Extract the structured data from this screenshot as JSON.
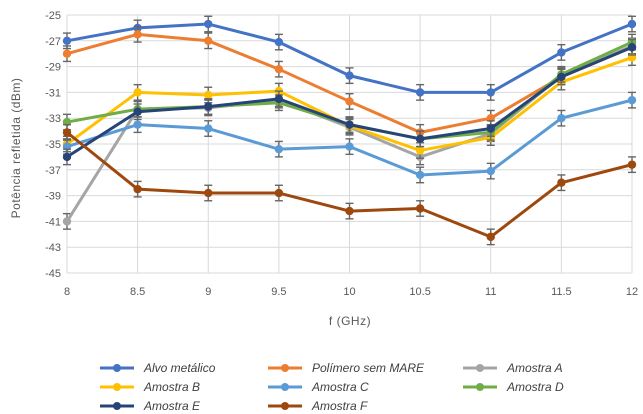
{
  "chart_data": {
    "type": "line",
    "title": "",
    "xlabel": "f (GHz)",
    "ylabel": "Potência refletida (dBm)",
    "x": [
      8,
      8.5,
      9,
      9.5,
      10,
      10.5,
      11,
      11.5,
      12
    ],
    "x_tick_labels": [
      "8",
      "8.5",
      "9",
      "9.5",
      "10",
      "10.5",
      "11",
      "11.5",
      "12"
    ],
    "ylim": [
      -45,
      -25
    ],
    "y_ticks": [
      -25,
      -27,
      -29,
      -31,
      -33,
      -35,
      -37,
      -39,
      -41,
      -43,
      -45
    ],
    "y_tick_labels": [
      "-25",
      "-27",
      "-29",
      "-31",
      "-33",
      "-35",
      "-37",
      "-39",
      "-41",
      "-43",
      "-45"
    ],
    "grid": true,
    "legend_position": "bottom",
    "error_bar": 0.6,
    "series": [
      {
        "name": "Alvo metálico",
        "color": "#4472c4",
        "values": [
          -27.0,
          -26.0,
          -25.7,
          -27.1,
          -29.7,
          -31.0,
          -31.0,
          -27.9,
          -25.7
        ]
      },
      {
        "name": "Polímero sem MARE",
        "color": "#ed7d31",
        "values": [
          -28.0,
          -26.5,
          -27.0,
          -29.2,
          -31.7,
          -34.1,
          -33.0,
          -29.8,
          -27.5
        ]
      },
      {
        "name": "Amostra A",
        "color": "#a5a5a5",
        "values": [
          -41.0,
          -32.3,
          -32.2,
          -31.6,
          -33.7,
          -36.0,
          -34.2,
          -29.7,
          -27.4
        ]
      },
      {
        "name": "Amostra B",
        "color": "#ffc000",
        "values": [
          -35.0,
          -31.0,
          -31.2,
          -30.9,
          -33.6,
          -35.5,
          -34.5,
          -30.2,
          -28.3
        ]
      },
      {
        "name": "Amostra C",
        "color": "#5b9bd5",
        "values": [
          -35.2,
          -33.5,
          -33.8,
          -35.4,
          -35.2,
          -37.4,
          -37.1,
          -33.0,
          -31.6
        ]
      },
      {
        "name": "Amostra D",
        "color": "#70ad47",
        "values": [
          -33.3,
          -32.3,
          -32.1,
          -31.8,
          -33.5,
          -34.6,
          -34.1,
          -29.6,
          -27.1
        ]
      },
      {
        "name": "Amostra E",
        "color": "#264478",
        "values": [
          -36.0,
          -32.5,
          -32.1,
          -31.5,
          -33.5,
          -34.6,
          -33.8,
          -29.8,
          -27.5
        ]
      },
      {
        "name": "Amostra F",
        "color": "#9e480e",
        "values": [
          -34.1,
          -38.5,
          -38.8,
          -38.8,
          -40.2,
          -40.0,
          -42.2,
          -38.0,
          -36.6
        ]
      }
    ]
  }
}
